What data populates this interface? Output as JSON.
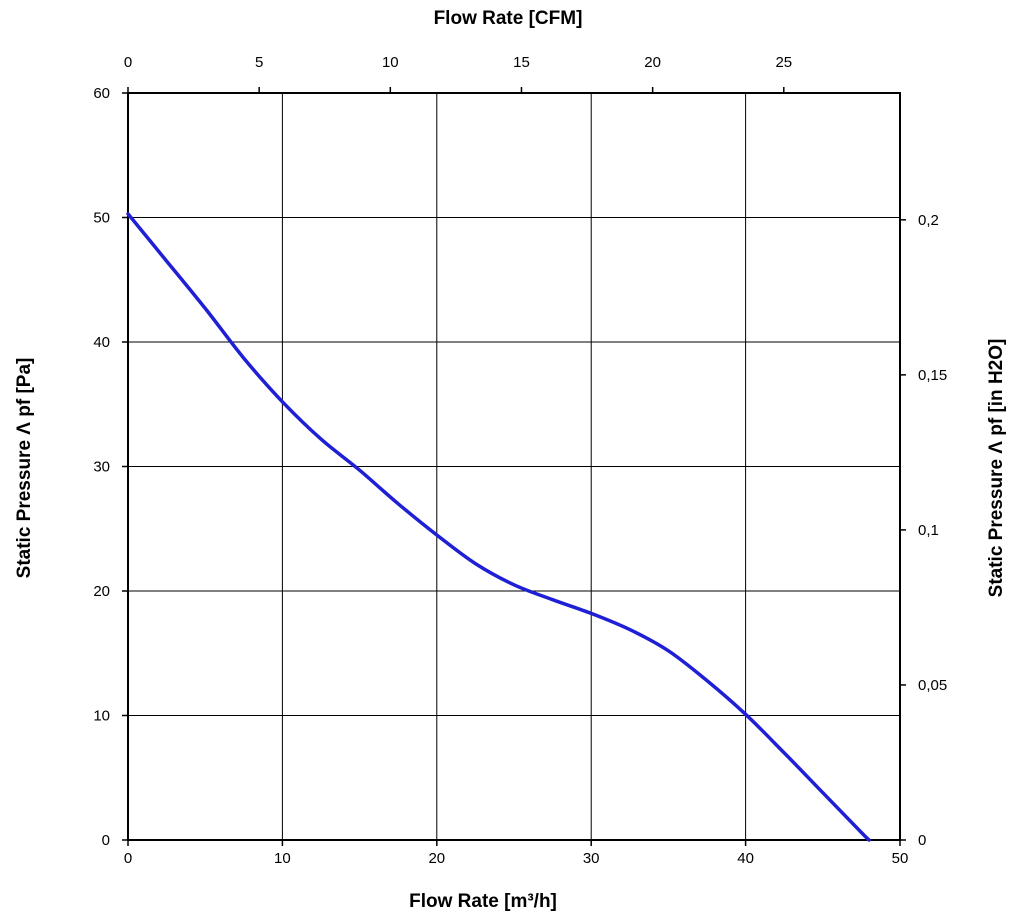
{
  "chart_data": {
    "type": "line",
    "title": "",
    "xlabel": "Flow Rate [m³/h]",
    "ylabel": "Static Pressure Λ pf [Pa]",
    "x2label": "Flow Rate [CFM]",
    "y2label": "Static Pressure Λ pf [in H2O]",
    "xlim": [
      0,
      50
    ],
    "ylim": [
      0,
      60
    ],
    "x2lim": [
      0,
      29.43
    ],
    "y2lim": [
      0,
      0.2409
    ],
    "x_ticks": [
      0,
      10,
      20,
      30,
      40,
      50
    ],
    "x_tick_labels": [
      "0",
      "10",
      "20",
      "30",
      "40",
      "50"
    ],
    "y_ticks": [
      0,
      10,
      20,
      30,
      40,
      50,
      60
    ],
    "y_tick_labels": [
      "0",
      "10",
      "20",
      "30",
      "40",
      "50",
      "60"
    ],
    "x2_ticks": [
      0,
      5,
      10,
      15,
      20,
      25
    ],
    "x2_tick_labels": [
      "0",
      "5",
      "10",
      "15",
      "20",
      "25"
    ],
    "y2_ticks": [
      0,
      0.05,
      0.1,
      0.15,
      0.2
    ],
    "y2_tick_labels": [
      "0",
      "0,05",
      "0,1",
      "0,15",
      "0,2"
    ],
    "grid": true,
    "series": [
      {
        "color": "#1f1fd6",
        "x": [
          0,
          2.5,
          5,
          7.5,
          10,
          12.5,
          15,
          17.5,
          20,
          22.5,
          25,
          27.5,
          30,
          32.5,
          35,
          37.5,
          40,
          42.5,
          45,
          47.5,
          48
        ],
        "y": [
          50.3,
          46.5,
          42.7,
          38.7,
          35.2,
          32.2,
          29.7,
          27.0,
          24.5,
          22.2,
          20.5,
          19.3,
          18.2,
          16.9,
          15.2,
          12.8,
          10.1,
          7.0,
          3.8,
          0.6,
          0
        ]
      }
    ]
  }
}
